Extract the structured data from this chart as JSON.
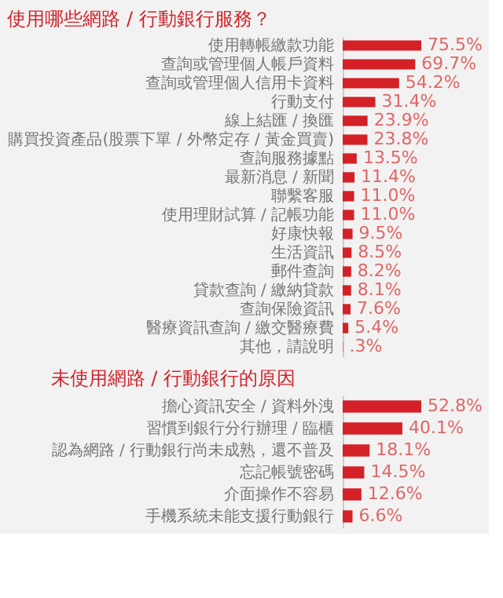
{
  "chart_data": [
    {
      "type": "bar",
      "orientation": "horizontal",
      "title": "使用哪些網路 / 行動銀行服務？",
      "color": "#d42027",
      "categories": [
        "使用轉帳繳款功能",
        "查詢或管理個人帳戶資料",
        "查詢或管理個人信用卡資料",
        "行動支付",
        "線上結匯 / 換匯",
        "購買投資產品(股票下單 / 外幣定存 / 黃金買賣)",
        "查詢服務據點",
        "最新消息 / 新聞",
        "聯繫客服",
        "使用理財試算 / 記帳功能",
        "好康快報",
        "生活資訊",
        "郵件查詢",
        "貸款查詢 / 繳納貸款",
        "查詢保險資訊",
        "醫療資訊查詢 / 繳交醫療費",
        "其他，請說明"
      ],
      "values": [
        75.5,
        69.7,
        54.2,
        31.4,
        23.9,
        23.8,
        13.5,
        11.4,
        11.0,
        11.0,
        9.5,
        8.5,
        8.2,
        8.1,
        7.6,
        5.4,
        0.3
      ],
      "value_labels": [
        "75.5%",
        "69.7%",
        "54.2%",
        "31.4%",
        "23.9%",
        "23.8%",
        "13.5%",
        "11.4%",
        "11.0%",
        "11.0%",
        "9.5%",
        "8.5%",
        "8.2%",
        "8.1%",
        "7.6%",
        "5.4%",
        ".3%"
      ]
    },
    {
      "type": "bar",
      "orientation": "horizontal",
      "title": "未使用網路 / 行動銀行的原因",
      "color": "#d42027",
      "categories": [
        "擔心資訊安全 / 資料外洩",
        "習慣到銀行分行辦理 / 臨櫃",
        "認為網路 / 行動銀行尚未成熟，還不普及",
        "忘記帳號密碼",
        "介面操作不容易",
        "手機系統未能支援行動銀行"
      ],
      "values": [
        52.8,
        40.1,
        18.1,
        14.5,
        12.6,
        6.6
      ],
      "value_labels": [
        "52.8%",
        "40.1%",
        "18.1%",
        "14.5%",
        "12.6%",
        "6.6%"
      ]
    }
  ]
}
